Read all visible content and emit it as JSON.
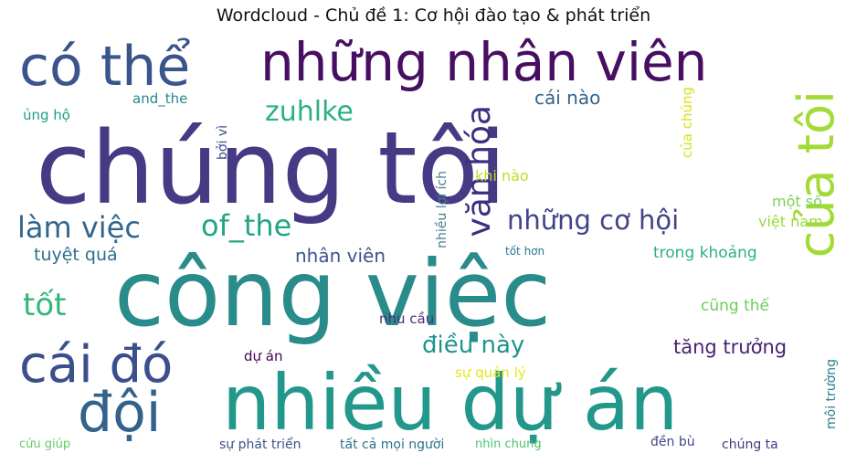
{
  "title": "Wordcloud - Chủ đề 1: Cơ hội đào tạo & phát triển",
  "words": [
    {
      "id": "chung-toi",
      "text": "chúng tôi",
      "color": "#463a84"
    },
    {
      "id": "cong-viec",
      "text": "công việc",
      "color": "#2a8c8a"
    },
    {
      "id": "nhieu-du-an",
      "text": "nhiều dự án",
      "color": "#22978b"
    },
    {
      "id": "nhung-nhan-vien",
      "text": "những nhân viên",
      "color": "#470e61"
    },
    {
      "id": "co-the",
      "text": "có thể",
      "color": "#3a548c"
    },
    {
      "id": "cai-do",
      "text": "cái đó",
      "color": "#3a4f8b"
    },
    {
      "id": "doi",
      "text": "đội",
      "color": "#33628d"
    },
    {
      "id": "cua-toi",
      "text": "của tôi",
      "color": "#a2da37"
    },
    {
      "id": "van-hoa",
      "text": "văn hóa",
      "color": "#3b2f7f"
    },
    {
      "id": "nhung-co-hoi",
      "text": "những cơ hội",
      "color": "#414487"
    },
    {
      "id": "lam-viec",
      "text": "làm việc",
      "color": "#31668e"
    },
    {
      "id": "of-the",
      "text": "of_the",
      "color": "#21a685"
    },
    {
      "id": "zuhlke",
      "text": "zuhlke",
      "color": "#2cb17e"
    },
    {
      "id": "tot",
      "text": "tốt",
      "color": "#35b779"
    },
    {
      "id": "dieu-nay",
      "text": "điều này",
      "color": "#1f948c"
    },
    {
      "id": "tang-truong",
      "text": "tăng trưởng",
      "color": "#482173"
    },
    {
      "id": "cai-nao",
      "text": "cái nào",
      "color": "#33638d"
    },
    {
      "id": "nhan-vien",
      "text": "nhân viên",
      "color": "#3a548c"
    },
    {
      "id": "tuyet-qua",
      "text": "tuyệt quá",
      "color": "#2e6e8e"
    },
    {
      "id": "trong-khoang",
      "text": "trong khoảng",
      "color": "#2db27d"
    },
    {
      "id": "cung-the",
      "text": "cũng thế",
      "color": "#6ccd5a"
    },
    {
      "id": "mot-so",
      "text": "một số",
      "color": "#7ad151"
    },
    {
      "id": "viet-nam",
      "text": "việt nam",
      "color": "#9bd93c"
    },
    {
      "id": "cua-chung",
      "text": "của chúng",
      "color": "#d8e219"
    },
    {
      "id": "khi-nao",
      "text": "khi nào",
      "color": "#bddf26"
    },
    {
      "id": "nhieu-loi-ich",
      "text": "nhiều lợi ích",
      "color": "#4a7d8e"
    },
    {
      "id": "boi-vi",
      "text": "bởi vì",
      "color": "#3e4c8a"
    },
    {
      "id": "and-the",
      "text": "and_the",
      "color": "#25858e"
    },
    {
      "id": "ung-ho",
      "text": "ủng hộ",
      "color": "#1f9e89"
    },
    {
      "id": "tot-hon",
      "text": "tốt hơn",
      "color": "#2a788e"
    },
    {
      "id": "nhu-cau",
      "text": "nhu cầu",
      "color": "#472d7b"
    },
    {
      "id": "du-an",
      "text": "dự án",
      "color": "#440154"
    },
    {
      "id": "su-quan-ly",
      "text": "sự quản lý",
      "color": "#e5e419"
    },
    {
      "id": "moi-truong",
      "text": "môi trường",
      "color": "#26828e"
    },
    {
      "id": "cuu-giup",
      "text": "cứu giúp",
      "color": "#63cb5f"
    },
    {
      "id": "su-phat-trien",
      "text": "sự phát triển",
      "color": "#3b528b"
    },
    {
      "id": "tat-ca-moi-nguoi",
      "text": "tất cả mọi người",
      "color": "#2c728e"
    },
    {
      "id": "nhin-chung",
      "text": "nhìn chung",
      "color": "#4ac16d"
    },
    {
      "id": "den-bu",
      "text": "đền bù",
      "color": "#3f4788"
    },
    {
      "id": "chung-ta",
      "text": "chúng ta",
      "color": "#453781"
    }
  ]
}
